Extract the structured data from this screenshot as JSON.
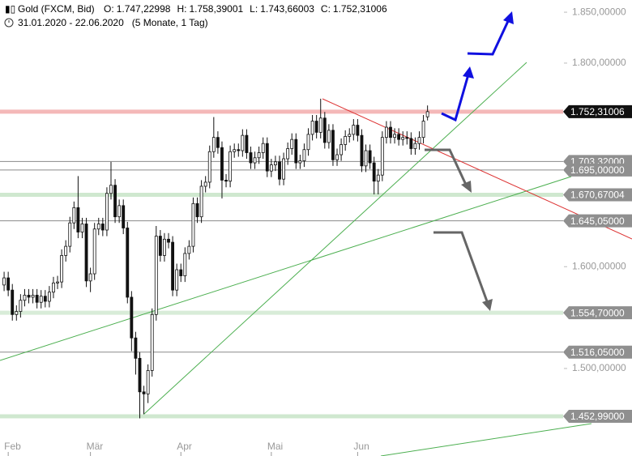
{
  "chart_data": {
    "type": "candlestick",
    "title": "Gold (FXCM, Bid)",
    "ohlc_labels": [
      {
        "name": "O:",
        "label": "1.747,22998"
      },
      {
        "name": "H:",
        "label": "1.758,39001"
      },
      {
        "name": "L:",
        "label": "1.743,66003"
      },
      {
        "name": "C:",
        "label": "1.752,31006"
      }
    ],
    "date_range": "31.01.2020 - 22.06.2020",
    "period": "(5 Monate, 1 Tag)",
    "up_color": "#ffffff",
    "down_color": "#111111",
    "open": [
      1582,
      1589,
      1577,
      1553,
      1556,
      1567,
      1572,
      1570,
      1572,
      1565,
      1571,
      1566,
      1575,
      1584,
      1585,
      1611,
      1620,
      1643,
      1658,
      1634,
      1642,
      1586,
      1593,
      1637,
      1642,
      1636,
      1672,
      1680,
      1649,
      1660,
      1638,
      1570,
      1530,
      1510,
      1477,
      1475,
      1498,
      1553,
      1630,
      1611,
      1627,
      1624,
      1577,
      1597,
      1591,
      1613,
      1620,
      1662,
      1649,
      1679,
      1683,
      1713,
      1727,
      1717,
      1685,
      1684,
      1713,
      1715,
      1714,
      1729,
      1712,
      1702,
      1707,
      1712,
      1721,
      1694,
      1700,
      1703,
      1686,
      1706,
      1716,
      1725,
      1702,
      1704,
      1715,
      1730,
      1743,
      1732,
      1746,
      1722,
      1734,
      1705,
      1710,
      1720,
      1728,
      1730,
      1739,
      1729,
      1699,
      1714,
      1702,
      1684,
      1690,
      1727,
      1737,
      1727,
      1730,
      1725,
      1727,
      1726,
      1716,
      1721,
      1727,
      1747.22998
    ],
    "high": [
      1595,
      1595,
      1583,
      1562,
      1573,
      1578,
      1578,
      1578,
      1578,
      1577,
      1577,
      1581,
      1590,
      1591,
      1617,
      1626,
      1649,
      1664,
      1689,
      1648,
      1648,
      1599,
      1643,
      1648,
      1648,
      1678,
      1703,
      1686,
      1666,
      1666,
      1644,
      1576,
      1536,
      1516,
      1483,
      1504,
      1559,
      1640,
      1636,
      1633,
      1633,
      1630,
      1603,
      1603,
      1619,
      1626,
      1668,
      1668,
      1685,
      1689,
      1719,
      1747,
      1733,
      1723,
      1691,
      1719,
      1721,
      1721,
      1735,
      1735,
      1718,
      1713,
      1718,
      1727,
      1727,
      1706,
      1709,
      1709,
      1712,
      1722,
      1731,
      1731,
      1710,
      1721,
      1736,
      1749,
      1749,
      1765,
      1752,
      1740,
      1740,
      1716,
      1726,
      1734,
      1736,
      1745,
      1745,
      1735,
      1720,
      1720,
      1708,
      1696,
      1733,
      1743,
      1743,
      1736,
      1736,
      1733,
      1733,
      1732,
      1727,
      1733,
      1749,
      1758.39001
    ],
    "low": [
      1576,
      1571,
      1547,
      1547,
      1550,
      1561,
      1564,
      1564,
      1559,
      1559,
      1560,
      1560,
      1569,
      1578,
      1579,
      1605,
      1614,
      1637,
      1628,
      1628,
      1580,
      1575,
      1587,
      1631,
      1630,
      1630,
      1666,
      1643,
      1643,
      1632,
      1564,
      1517,
      1494,
      1451,
      1455,
      1466,
      1492,
      1547,
      1605,
      1605,
      1618,
      1571,
      1571,
      1585,
      1585,
      1607,
      1614,
      1643,
      1643,
      1673,
      1677,
      1707,
      1711,
      1667,
      1678,
      1678,
      1707,
      1708,
      1708,
      1706,
      1696,
      1696,
      1701,
      1706,
      1688,
      1688,
      1694,
      1680,
      1680,
      1700,
      1710,
      1696,
      1696,
      1698,
      1709,
      1724,
      1726,
      1726,
      1716,
      1716,
      1699,
      1699,
      1704,
      1714,
      1722,
      1724,
      1723,
      1693,
      1693,
      1696,
      1671,
      1671,
      1684,
      1721,
      1721,
      1721,
      1719,
      1719,
      1720,
      1710,
      1710,
      1715,
      1721,
      1743.66003
    ],
    "close": [
      1589,
      1577,
      1553,
      1556,
      1567,
      1572,
      1570,
      1572,
      1565,
      1571,
      1566,
      1575,
      1584,
      1585,
      1611,
      1620,
      1643,
      1658,
      1634,
      1642,
      1586,
      1593,
      1637,
      1642,
      1636,
      1672,
      1680,
      1649,
      1660,
      1638,
      1570,
      1530,
      1510,
      1477,
      1475,
      1498,
      1553,
      1630,
      1611,
      1627,
      1624,
      1577,
      1597,
      1591,
      1613,
      1620,
      1662,
      1649,
      1679,
      1683,
      1713,
      1727,
      1717,
      1685,
      1684,
      1713,
      1715,
      1714,
      1729,
      1712,
      1702,
      1707,
      1712,
      1721,
      1694,
      1700,
      1703,
      1686,
      1706,
      1716,
      1725,
      1702,
      1704,
      1715,
      1730,
      1743,
      1732,
      1746,
      1722,
      1734,
      1705,
      1710,
      1720,
      1728,
      1730,
      1739,
      1729,
      1699,
      1714,
      1702,
      1684,
      1690,
      1727,
      1737,
      1727,
      1730,
      1725,
      1727,
      1726,
      1716,
      1721,
      1727,
      1743,
      1752.31006
    ],
    "xlim": [
      -1,
      135
    ],
    "xticks": [
      {
        "value": 1,
        "label": "Feb"
      },
      {
        "value": 21,
        "label": "Mär"
      },
      {
        "value": 43,
        "label": "Apr"
      },
      {
        "value": 65,
        "label": "Mai"
      },
      {
        "value": 86,
        "label": "Jun"
      }
    ],
    "ylim": [
      1414,
      1862
    ],
    "yticks": [
      {
        "value": 1850,
        "label": "1.850,00000"
      },
      {
        "value": 1800,
        "label": "1.800,00000"
      },
      {
        "value": 1600,
        "label": "1.600,00000"
      },
      {
        "value": 1500,
        "label": "1.500,00000"
      }
    ],
    "levels": [
      {
        "value": 1752.31006,
        "label": "1.752,31006",
        "color": "#f4b8b8",
        "style": "band",
        "box": "#111111"
      },
      {
        "value": 1703.32,
        "label": "1.703,32000",
        "color": "#8a8a8a",
        "style": "line",
        "box": "#8f8f8f"
      },
      {
        "value": 1695,
        "label": "1.695,00000",
        "color": "#8a8a8a",
        "style": "line",
        "box": "#8f8f8f"
      },
      {
        "value": 1670.67004,
        "label": "1.670,67004",
        "color": "#cfe8cf",
        "style": "band",
        "box": "#8f8f8f"
      },
      {
        "value": 1645.05,
        "label": "1.645,05000",
        "color": "#8a8a8a",
        "style": "line",
        "box": "#8f8f8f"
      },
      {
        "value": 1554.7,
        "label": "1.554,70000",
        "color": "#d8ecd8",
        "style": "band",
        "box": "#8f8f8f"
      },
      {
        "value": 1516.05,
        "label": "1.516,05000",
        "color": "#8a8a8a",
        "style": "line",
        "box": "#8f8f8f"
      },
      {
        "value": 1452.99,
        "label": "1.452,99000",
        "color": "#cfe8cf",
        "style": "band",
        "box": "#8f8f8f"
      }
    ]
  }
}
